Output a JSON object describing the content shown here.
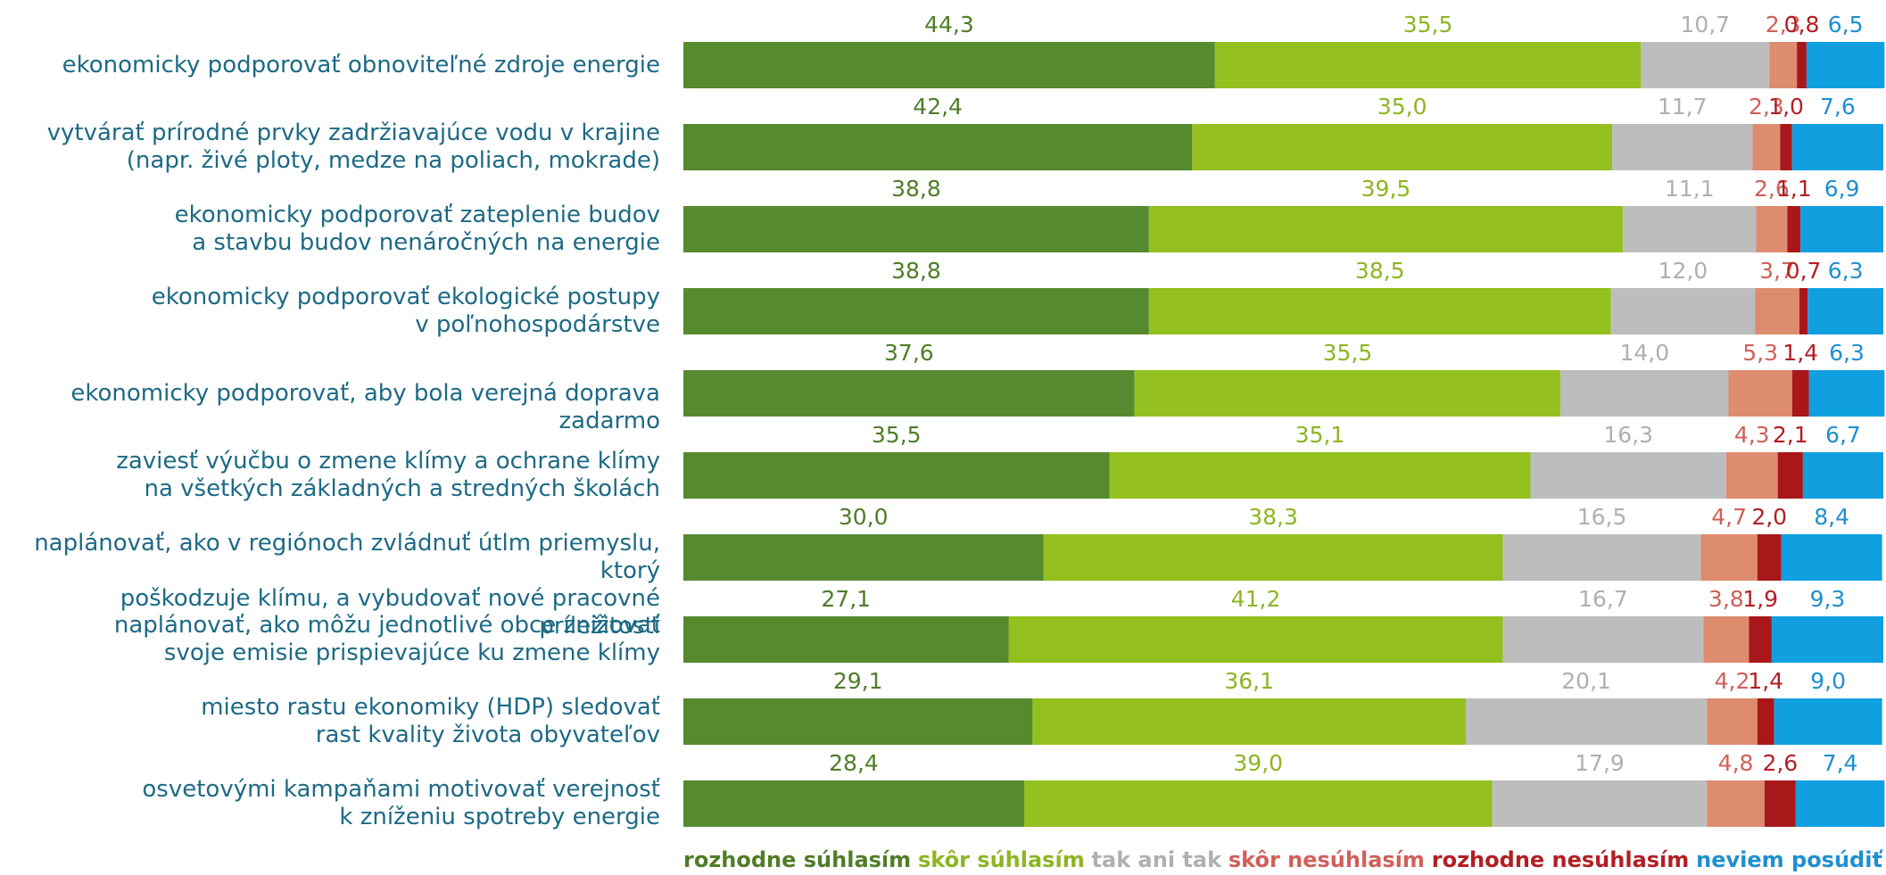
{
  "chart_data": {
    "type": "stacked-barh",
    "categories": [
      "ekonomicky podporovať obnoviteľné zdroje energie",
      "vytvárať prírodné prvky zadržiavajúce vodu v krajine\n(napr. živé ploty, medze na poliach, mokrade)",
      "ekonomicky podporovať zateplenie budov\na stavbu budov nenáročných na energie",
      "ekonomicky podporovať ekologické postupy\nv poľnohospodárstve",
      "ekonomicky podporovať, aby bola verejná doprava zadarmo",
      "zaviesť výučbu o zmene klímy a ochrane klímy\nna všetkých základných a stredných školách",
      "naplánovať, ako v regiónoch zvládnuť útlm priemyslu, ktorý\npoškodzuje klímu, a vybudovať nové pracovné príležitosti",
      "naplánovať, ako môžu jednotlivé obce znižovať\nsvoje emisie prispievajúce ku zmene klímy",
      "miesto rastu ekonomiky (HDP) sledovať\nrast kvality života obyvateľov",
      "osvetovými kampaňami motivovať verejnosť\nk zníženiu spotreby energie"
    ],
    "xlim": [
      0,
      100
    ],
    "series": [
      {
        "name": "rozhodne súhlasím",
        "color": "#568a2f",
        "label_color": "#4f7d28",
        "values": [
          44.3,
          42.4,
          38.8,
          38.8,
          37.6,
          35.5,
          30.0,
          27.1,
          29.1,
          28.4
        ],
        "value_labels": [
          "44,3",
          "42,4",
          "38,8",
          "38,8",
          "37,6",
          "35,5",
          "30,0",
          "27,1",
          "29,1",
          "28,4"
        ]
      },
      {
        "name": "skôr súhlasím",
        "color": "#93c01f",
        "label_color": "#8db522",
        "values": [
          35.5,
          35.0,
          39.5,
          38.5,
          35.5,
          35.1,
          38.3,
          41.2,
          36.1,
          39.0
        ],
        "value_labels": [
          "35,5",
          "35,0",
          "39,5",
          "38,5",
          "35,5",
          "35,1",
          "38,3",
          "41,2",
          "36,1",
          "39,0"
        ]
      },
      {
        "name": "tak ani tak",
        "color": "#bdbdbd",
        "label_color": "#b0b0b0",
        "values": [
          10.7,
          11.7,
          11.1,
          12.0,
          14.0,
          16.3,
          16.5,
          16.7,
          20.1,
          17.9
        ],
        "value_labels": [
          "10,7",
          "11,7",
          "11,1",
          "12,0",
          "14,0",
          "16,3",
          "16,5",
          "16,7",
          "20,1",
          "17,9"
        ]
      },
      {
        "name": "skôr nesúhlasím",
        "color": "#de8c6e",
        "label_color": "#d0605a",
        "values": [
          2.3,
          2.3,
          2.6,
          3.7,
          5.3,
          4.3,
          4.7,
          3.8,
          4.2,
          4.8
        ],
        "value_labels": [
          "2,3",
          "2,3",
          "2,6",
          "3,7",
          "5,3",
          "4,3",
          "4,7",
          "3,8",
          "4,2",
          "4,8"
        ]
      },
      {
        "name": "rozhodne nesúhlasím",
        "color": "#a8181b",
        "label_color": "#b21f24",
        "values": [
          0.8,
          1.0,
          1.1,
          0.7,
          1.4,
          2.1,
          2.0,
          1.9,
          1.4,
          2.6
        ],
        "value_labels": [
          "0,8",
          "1,0",
          "1,1",
          "0,7",
          "1,4",
          "2,1",
          "2,0",
          "1,9",
          "1,4",
          "2,6"
        ]
      },
      {
        "name": "neviem posúdiť",
        "color": "#10a0e0",
        "label_color": "#1f8fd0",
        "values": [
          6.5,
          7.6,
          6.9,
          6.3,
          6.3,
          6.7,
          8.4,
          9.3,
          9.0,
          7.4
        ],
        "value_labels": [
          "6,5",
          "7,6",
          "6,9",
          "6,3",
          "6,3",
          "6,7",
          "8,4",
          "9,3",
          "9,0",
          "7,4"
        ]
      }
    ]
  }
}
